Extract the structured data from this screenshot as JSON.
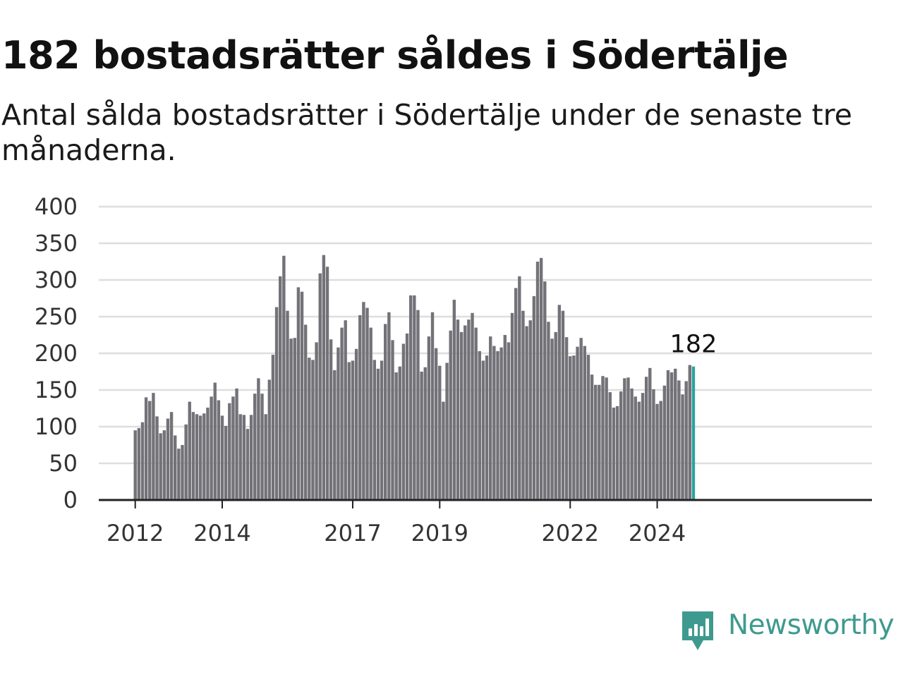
{
  "header": {
    "title": "182 bostadsrätter såldes i Södertälje",
    "subtitle": "Antal sålda bostadsrätter i Södertälje under de senaste tre månaderna."
  },
  "brand": {
    "name": "Newsworthy",
    "icon": "newsworthy-logo-icon",
    "color": "#3e9a8f"
  },
  "colors": {
    "bar": "#737278",
    "highlight": "#2ba39b",
    "grid": "#dedede",
    "axis": "#222222"
  },
  "chart_data": {
    "type": "bar",
    "title": "182 bostadsrätter såldes i Södertälje",
    "subtitle": "Antal sålda bostadsrätter i Södertälje under de senaste tre månaderna.",
    "xlabel": "",
    "ylabel": "",
    "ylim": [
      0,
      400
    ],
    "y_ticks": [
      0,
      50,
      100,
      150,
      200,
      250,
      300,
      350,
      400
    ],
    "grid": true,
    "x_tick_labels": [
      {
        "label": "2012",
        "index": 0
      },
      {
        "label": "2014",
        "index": 24
      },
      {
        "label": "2017",
        "index": 60
      },
      {
        "label": "2019",
        "index": 84
      },
      {
        "label": "2022",
        "index": 120
      },
      {
        "label": "2024",
        "index": 144
      }
    ],
    "highlight_last": true,
    "last_value_label": "182",
    "values": [
      95,
      98,
      106,
      140,
      135,
      146,
      114,
      91,
      95,
      111,
      120,
      88,
      70,
      75,
      103,
      134,
      120,
      117,
      115,
      118,
      126,
      141,
      160,
      136,
      115,
      101,
      132,
      141,
      152,
      117,
      116,
      97,
      116,
      145,
      166,
      145,
      117,
      164,
      198,
      263,
      305,
      333,
      258,
      220,
      221,
      290,
      284,
      239,
      194,
      191,
      215,
      309,
      334,
      318,
      219,
      177,
      208,
      235,
      245,
      188,
      190,
      206,
      252,
      270,
      262,
      235,
      191,
      179,
      190,
      240,
      256,
      218,
      174,
      182,
      213,
      227,
      279,
      279,
      259,
      175,
      181,
      223,
      256,
      207,
      183,
      134,
      187,
      231,
      273,
      246,
      229,
      238,
      246,
      255,
      235,
      203,
      190,
      197,
      223,
      210,
      203,
      208,
      225,
      215,
      255,
      289,
      305,
      258,
      237,
      245,
      278,
      325,
      330,
      298,
      243,
      220,
      229,
      266,
      258,
      222,
      196,
      197,
      209,
      221,
      210,
      198,
      171,
      157,
      157,
      169,
      167,
      147,
      126,
      128,
      148,
      166,
      167,
      152,
      141,
      134,
      146,
      168,
      180,
      151,
      131,
      135,
      156,
      177,
      174,
      179,
      163,
      144,
      162,
      184,
      182
    ]
  }
}
